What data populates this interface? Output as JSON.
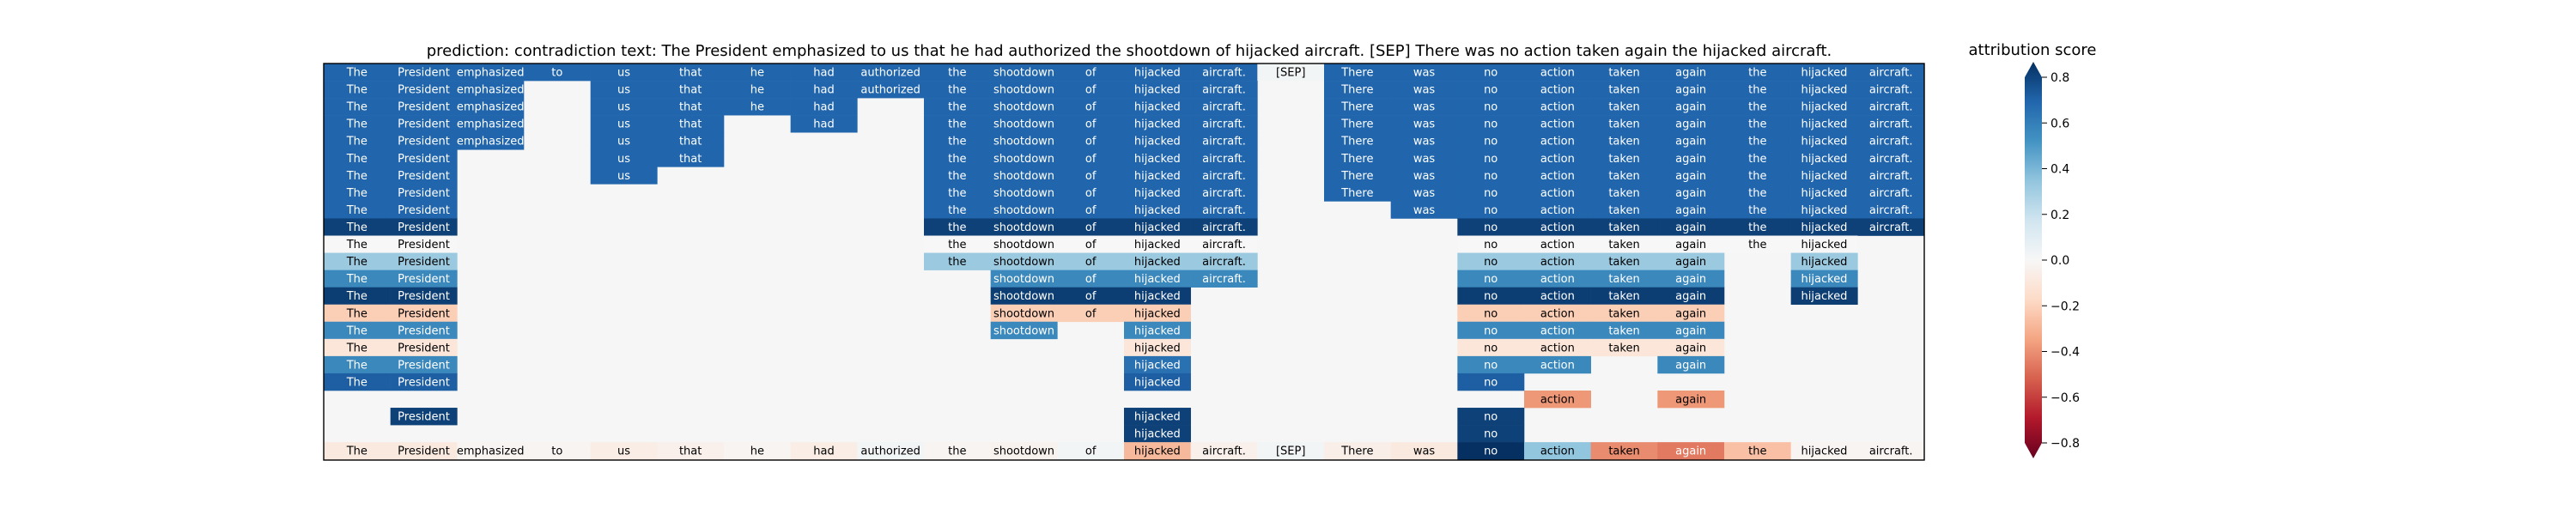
{
  "chart_data": {
    "type": "heatmap",
    "title": "prediction:  contradiction     text:  The President emphasized to us that he had authorized the shootdown of hijacked aircraft. [SEP] There was no action taken again the hijacked aircraft.",
    "columns": [
      "The",
      "President",
      "emphasized",
      "to",
      "us",
      "that",
      "he",
      "had",
      "authorized",
      "the",
      "shootdown",
      "of",
      "hijacked",
      "aircraft.",
      "[SEP]",
      "There",
      "was",
      "no",
      "action",
      "taken",
      "again",
      "the",
      "hijacked",
      "aircraft."
    ],
    "rows": [
      [
        0.64,
        0.64,
        0.64,
        0.64,
        0.64,
        0.64,
        0.64,
        0.64,
        0.64,
        0.64,
        0.64,
        0.64,
        0.64,
        0.64,
        0.02,
        0.64,
        0.64,
        0.64,
        0.64,
        0.64,
        0.64,
        0.64,
        0.64,
        0.64
      ],
      [
        0.64,
        0.64,
        0.64,
        null,
        0.64,
        0.64,
        0.64,
        0.64,
        0.64,
        0.64,
        0.64,
        0.64,
        0.64,
        0.64,
        null,
        0.64,
        0.64,
        0.64,
        0.64,
        0.64,
        0.64,
        0.64,
        0.64,
        0.64
      ],
      [
        0.64,
        0.64,
        0.64,
        null,
        0.64,
        0.64,
        0.64,
        0.64,
        null,
        0.64,
        0.64,
        0.64,
        0.64,
        0.64,
        null,
        0.64,
        0.64,
        0.64,
        0.64,
        0.64,
        0.64,
        0.64,
        0.64,
        0.64
      ],
      [
        0.64,
        0.64,
        0.64,
        null,
        0.64,
        0.64,
        null,
        0.64,
        null,
        0.64,
        0.64,
        0.64,
        0.64,
        0.64,
        null,
        0.64,
        0.64,
        0.64,
        0.64,
        0.64,
        0.64,
        0.64,
        0.64,
        0.64
      ],
      [
        0.64,
        0.64,
        0.64,
        null,
        0.64,
        0.64,
        null,
        null,
        null,
        0.64,
        0.64,
        0.64,
        0.64,
        0.64,
        null,
        0.64,
        0.64,
        0.64,
        0.64,
        0.64,
        0.64,
        0.64,
        0.64,
        0.64
      ],
      [
        0.64,
        0.64,
        null,
        null,
        0.64,
        0.64,
        null,
        null,
        null,
        0.64,
        0.64,
        0.64,
        0.64,
        0.64,
        null,
        0.64,
        0.64,
        0.64,
        0.64,
        0.64,
        0.64,
        0.64,
        0.64,
        0.64
      ],
      [
        0.64,
        0.64,
        null,
        null,
        0.64,
        null,
        null,
        null,
        null,
        0.64,
        0.64,
        0.64,
        0.64,
        0.64,
        null,
        0.64,
        0.64,
        0.64,
        0.64,
        0.64,
        0.64,
        0.64,
        0.64,
        0.64
      ],
      [
        0.64,
        0.64,
        null,
        null,
        null,
        null,
        null,
        null,
        null,
        0.64,
        0.64,
        0.64,
        0.64,
        0.64,
        null,
        0.64,
        0.64,
        0.64,
        0.64,
        0.64,
        0.64,
        0.64,
        0.64,
        0.64
      ],
      [
        0.64,
        0.64,
        null,
        null,
        null,
        null,
        null,
        null,
        null,
        0.64,
        0.64,
        0.64,
        0.64,
        0.64,
        null,
        null,
        0.64,
        0.64,
        0.64,
        0.64,
        0.64,
        0.64,
        0.64,
        0.64
      ],
      [
        0.75,
        0.75,
        null,
        null,
        null,
        null,
        null,
        null,
        null,
        0.75,
        0.75,
        0.75,
        0.75,
        0.75,
        null,
        null,
        null,
        0.75,
        0.75,
        0.75,
        0.75,
        0.75,
        0.75,
        0.75
      ],
      [
        0.0,
        0.0,
        null,
        null,
        null,
        null,
        null,
        null,
        null,
        0.0,
        0.0,
        0.0,
        0.0,
        0.0,
        null,
        null,
        null,
        0.0,
        0.0,
        0.0,
        0.0,
        0.0,
        0.0,
        null
      ],
      [
        0.3,
        0.3,
        null,
        null,
        null,
        null,
        null,
        null,
        null,
        0.3,
        0.3,
        0.3,
        0.3,
        0.3,
        null,
        null,
        null,
        0.3,
        0.3,
        0.3,
        0.3,
        null,
        0.3,
        null
      ],
      [
        0.52,
        0.52,
        null,
        null,
        null,
        null,
        null,
        null,
        null,
        null,
        0.52,
        0.52,
        0.52,
        0.52,
        null,
        null,
        null,
        0.52,
        0.52,
        0.52,
        0.52,
        null,
        0.52,
        null
      ],
      [
        0.76,
        0.76,
        null,
        null,
        null,
        null,
        null,
        null,
        null,
        null,
        0.76,
        0.76,
        0.76,
        null,
        null,
        null,
        null,
        0.76,
        0.76,
        0.76,
        0.76,
        null,
        0.76,
        null
      ],
      [
        -0.2,
        -0.2,
        null,
        null,
        null,
        null,
        null,
        null,
        null,
        null,
        -0.2,
        -0.2,
        -0.2,
        null,
        null,
        null,
        null,
        -0.2,
        -0.2,
        -0.2,
        -0.2,
        null,
        null,
        null
      ],
      [
        0.52,
        0.52,
        null,
        null,
        null,
        null,
        null,
        null,
        null,
        null,
        0.52,
        null,
        0.52,
        null,
        null,
        null,
        null,
        0.52,
        0.52,
        0.52,
        0.52,
        null,
        null,
        null
      ],
      [
        -0.1,
        -0.1,
        null,
        null,
        null,
        null,
        null,
        null,
        null,
        null,
        null,
        null,
        -0.1,
        null,
        null,
        null,
        null,
        -0.1,
        -0.1,
        -0.1,
        -0.1,
        null,
        null,
        null
      ],
      [
        0.52,
        0.52,
        null,
        null,
        null,
        null,
        null,
        null,
        null,
        null,
        null,
        null,
        0.6,
        null,
        null,
        null,
        null,
        0.52,
        0.52,
        null,
        0.52,
        null,
        null,
        null
      ],
      [
        0.66,
        0.66,
        null,
        null,
        null,
        null,
        null,
        null,
        null,
        null,
        null,
        null,
        0.66,
        null,
        null,
        null,
        null,
        0.66,
        null,
        null,
        null,
        null,
        null,
        null
      ],
      [
        null,
        null,
        null,
        null,
        null,
        null,
        null,
        null,
        null,
        null,
        null,
        null,
        null,
        null,
        null,
        null,
        null,
        null,
        -0.35,
        null,
        -0.35,
        null,
        null,
        null
      ],
      [
        null,
        0.75,
        null,
        null,
        null,
        null,
        null,
        null,
        null,
        null,
        null,
        null,
        0.75,
        null,
        null,
        null,
        null,
        0.75,
        null,
        null,
        null,
        null,
        null,
        null
      ],
      [
        null,
        null,
        null,
        null,
        null,
        null,
        null,
        null,
        null,
        null,
        null,
        null,
        0.75,
        null,
        null,
        null,
        null,
        0.75,
        null,
        null,
        null,
        null,
        null,
        null
      ],
      [
        -0.08,
        -0.08,
        -0.02,
        -0.02,
        -0.06,
        -0.04,
        -0.02,
        -0.06,
        0.02,
        -0.02,
        -0.03,
        0.02,
        -0.26,
        -0.04,
        0.02,
        -0.05,
        -0.08,
        0.8,
        0.32,
        -0.38,
        -0.42,
        -0.24,
        -0.02,
        -0.02
      ]
    ],
    "colorbar": {
      "label": "attribution score",
      "range": [
        -0.8,
        0.8
      ],
      "ticks": [
        0.8,
        0.6,
        0.4,
        0.2,
        0.0,
        -0.2,
        -0.4,
        -0.6,
        -0.8
      ],
      "tick_labels": [
        "0.8",
        "0.6",
        "0.4",
        "0.2",
        "0.0",
        "−0.2",
        "−0.4",
        "−0.6",
        "−0.8"
      ],
      "colormap": "RdBu"
    },
    "background_color": "#f5f6f5"
  }
}
